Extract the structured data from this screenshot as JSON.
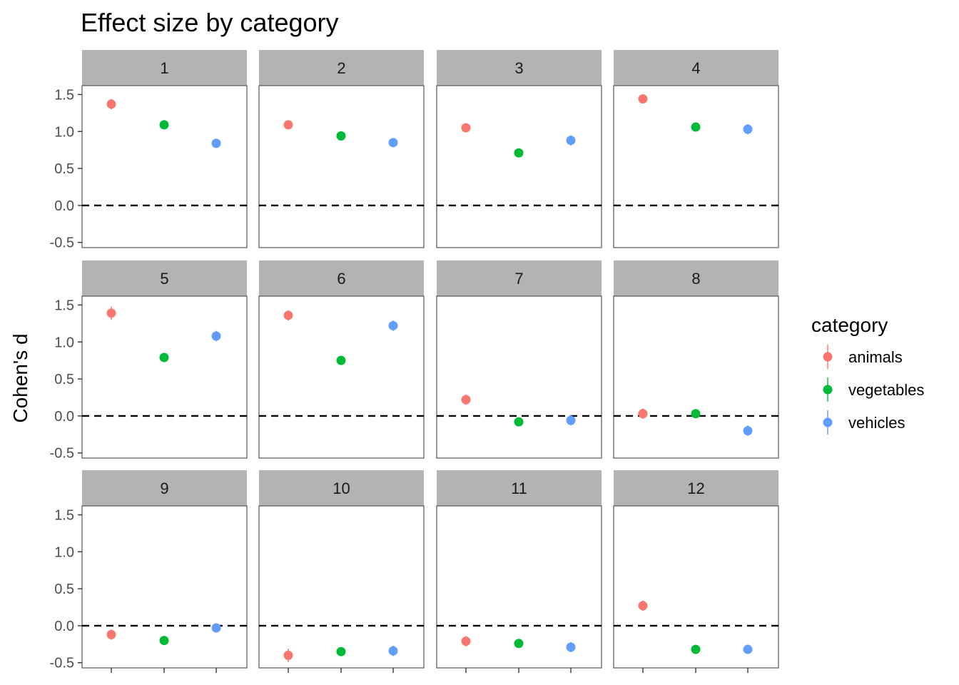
{
  "chart_data": {
    "type": "scatter",
    "title": "Effect size by category",
    "xlabel": "",
    "ylabel": "Cohen's d",
    "ylim": [
      -0.57,
      1.62
    ],
    "yticks": [
      -0.5,
      0.0,
      0.5,
      1.0,
      1.5
    ],
    "ytick_labels": [
      "-0.5",
      "0.0",
      "0.5",
      "1.0",
      "1.5"
    ],
    "reference_line": 0,
    "reference_line_style": "dashed",
    "facet_layout": {
      "rows": 3,
      "cols": 4
    },
    "legend": {
      "title": "category",
      "placement": "right",
      "entries": [
        {
          "name": "animals",
          "color": "#F8766D"
        },
        {
          "name": "vegetables",
          "color": "#00BA38"
        },
        {
          "name": "vehicles",
          "color": "#619CFF"
        }
      ]
    },
    "categories": [
      "animals",
      "vegetables",
      "vehicles"
    ],
    "panels": [
      {
        "label": "1",
        "values": [
          1.37,
          1.09,
          0.84
        ],
        "err": [
          0.07,
          0.06,
          0.06
        ]
      },
      {
        "label": "2",
        "values": [
          1.09,
          0.94,
          0.85
        ],
        "err": [
          0.06,
          0.06,
          0.06
        ]
      },
      {
        "label": "3",
        "values": [
          1.05,
          0.71,
          0.88
        ],
        "err": [
          0.06,
          0.06,
          0.07
        ]
      },
      {
        "label": "4",
        "values": [
          1.44,
          1.06,
          1.03
        ],
        "err": [
          0.06,
          0.06,
          0.07
        ]
      },
      {
        "label": "5",
        "values": [
          1.39,
          0.79,
          1.08
        ],
        "err": [
          0.09,
          0.06,
          0.07
        ]
      },
      {
        "label": "6",
        "values": [
          1.36,
          0.75,
          1.22
        ],
        "err": [
          0.07,
          0.06,
          0.07
        ]
      },
      {
        "label": "7",
        "values": [
          0.22,
          -0.08,
          -0.06
        ],
        "err": [
          0.07,
          0.05,
          0.07
        ]
      },
      {
        "label": "8",
        "values": [
          0.03,
          0.03,
          -0.2
        ],
        "err": [
          0.07,
          0.05,
          0.07
        ]
      },
      {
        "label": "9",
        "values": [
          -0.12,
          -0.2,
          -0.03
        ],
        "err": [
          0.07,
          0.06,
          0.06
        ]
      },
      {
        "label": "10",
        "values": [
          -0.4,
          -0.35,
          -0.34
        ],
        "err": [
          0.09,
          0.06,
          0.07
        ]
      },
      {
        "label": "11",
        "values": [
          -0.21,
          -0.24,
          -0.29
        ],
        "err": [
          0.07,
          0.06,
          0.07
        ]
      },
      {
        "label": "12",
        "values": [
          0.27,
          -0.32,
          -0.32
        ],
        "err": [
          0.07,
          0.06,
          0.06
        ]
      }
    ]
  }
}
